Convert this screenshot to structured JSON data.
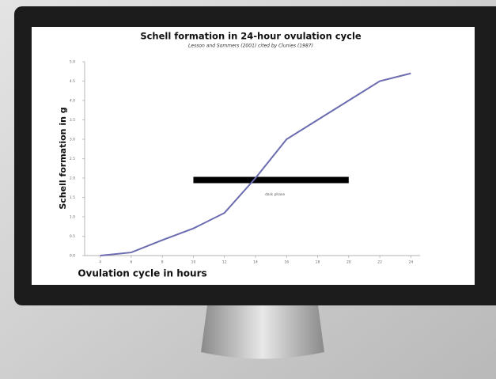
{
  "chart_data": {
    "type": "line",
    "title": "Schell formation in 24-hour ovulation cycle",
    "subtitle": "Lesson and Sommers (2001) cited by Clunies (1987)",
    "x_label": "Ovulation cycle in hours",
    "y_label": "Schell formation in g",
    "x": [
      4,
      6,
      8,
      10,
      12,
      14,
      16,
      18,
      20,
      22,
      24
    ],
    "values": [
      0,
      0.08,
      0.4,
      0.7,
      1.1,
      2.0,
      3.0,
      3.5,
      4.0,
      4.5,
      4.7
    ],
    "color": "#6b6bb0",
    "xlim": [
      3,
      25
    ],
    "xticks": [
      4,
      6,
      8,
      10,
      12,
      14,
      16,
      18,
      20,
      22,
      24
    ],
    "ylim": [
      0,
      5
    ],
    "yticks": [
      {
        "value": 0,
        "label": "0.0"
      },
      0.5,
      {
        "value": 1,
        "label": "1.0"
      },
      1.5,
      {
        "value": 2,
        "label": "2.0"
      },
      2.5,
      {
        "value": 3,
        "label": "3.0"
      },
      3.5,
      {
        "value": 4,
        "label": "4.0"
      },
      4.5,
      {
        "value": 5,
        "label": "5.0"
      }
    ],
    "dark_phase": {
      "x": [
        10,
        20
      ],
      "y": 1.95,
      "label": "dark phase"
    }
  }
}
